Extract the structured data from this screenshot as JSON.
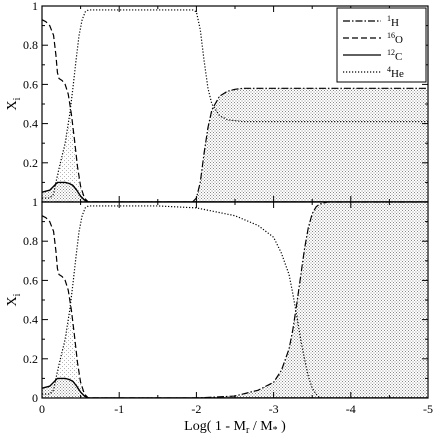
{
  "chart_data": {
    "type": "line",
    "xlabel": "Log( 1 - M_r / M_*)",
    "xlabel_main": "Log( 1 - M",
    "xlabel_sub_r": "r",
    "xlabel_mid": " / M",
    "xlabel_sub_star": "*",
    "xlabel_end": " )",
    "xlim": [
      0,
      -5
    ],
    "xticks": [
      0,
      -1,
      -2,
      -3,
      -4,
      -5
    ],
    "xtick_labels": [
      "0",
      "-1",
      "-2",
      "-3",
      "-4",
      "-5"
    ],
    "legend": {
      "placement": "top-right",
      "entries": [
        {
          "sup": "1",
          "base": "H",
          "style": "dash-dot"
        },
        {
          "sup": "16",
          "base": "O",
          "style": "dashed"
        },
        {
          "sup": "12",
          "base": "C",
          "style": "solid"
        },
        {
          "sup": "4",
          "base": "He",
          "style": "dotted"
        }
      ]
    },
    "panels": [
      {
        "ylabel": "X",
        "ylabel_sub": "i",
        "ylim": [
          0,
          1
        ],
        "yticks": [
          0.2,
          0.4,
          0.6,
          0.8,
          1
        ],
        "ytick_labels": [
          "0.2",
          "0.4",
          "0.6",
          "0.8",
          "1"
        ],
        "series": [
          {
            "name": "1H",
            "style": "dash-dot",
            "x": [
              0,
              -1.95,
              -2.0,
              -2.05,
              -2.1,
              -2.15,
              -2.2,
              -2.3,
              -2.4,
              -2.5,
              -2.6,
              -2.8,
              -3.2,
              -5
            ],
            "y": [
              0,
              0,
              0.02,
              0.1,
              0.25,
              0.38,
              0.47,
              0.54,
              0.565,
              0.575,
              0.58,
              0.58,
              0.58,
              0.58
            ]
          },
          {
            "name": "16O",
            "style": "dashed",
            "x": [
              0,
              -0.05,
              -0.1,
              -0.15,
              -0.18,
              -0.2,
              -0.22,
              -0.26,
              -0.3,
              -0.34,
              -0.38,
              -0.42,
              -0.46,
              -0.5,
              -0.55,
              -0.6,
              -0.7,
              -5
            ],
            "y": [
              0.93,
              0.92,
              0.9,
              0.85,
              0.75,
              0.66,
              0.63,
              0.62,
              0.6,
              0.55,
              0.45,
              0.32,
              0.18,
              0.08,
              0.02,
              0,
              0,
              0
            ]
          },
          {
            "name": "12C",
            "style": "solid",
            "x": [
              0,
              -0.05,
              -0.1,
              -0.15,
              -0.2,
              -0.25,
              -0.3,
              -0.35,
              -0.4,
              -0.45,
              -0.5,
              -0.55,
              -0.6,
              -5
            ],
            "y": [
              0.05,
              0.055,
              0.06,
              0.08,
              0.1,
              0.1,
              0.1,
              0.095,
              0.085,
              0.06,
              0.03,
              0.01,
              0,
              0
            ]
          },
          {
            "name": "4He",
            "style": "dotted",
            "x": [
              0,
              -0.1,
              -0.15,
              -0.18,
              -0.22,
              -0.3,
              -0.36,
              -0.4,
              -0.44,
              -0.48,
              -0.52,
              -0.56,
              -0.6,
              -0.7,
              -1.0,
              -1.5,
              -1.95,
              -2.0,
              -2.05,
              -2.1,
              -2.15,
              -2.2,
              -2.3,
              -2.4,
              -2.6,
              -3.0,
              -5
            ],
            "y": [
              0.02,
              0.02,
              0.04,
              0.1,
              0.17,
              0.3,
              0.45,
              0.58,
              0.72,
              0.85,
              0.93,
              0.97,
              0.98,
              0.98,
              0.98,
              0.98,
              0.98,
              0.97,
              0.88,
              0.72,
              0.58,
              0.5,
              0.44,
              0.42,
              0.41,
              0.41,
              0.41
            ]
          }
        ]
      },
      {
        "ylabel": "X",
        "ylabel_sub": "i",
        "ylim": [
          0,
          1
        ],
        "yticks": [
          0,
          0.2,
          0.4,
          0.6,
          0.8,
          1
        ],
        "ytick_labels": [
          "0",
          "0.2",
          "0.4",
          "0.6",
          "0.8",
          "1"
        ],
        "series": [
          {
            "name": "1H",
            "style": "dash-dot",
            "x": [
              0,
              -2.0,
              -2.5,
              -2.8,
              -3.0,
              -3.1,
              -3.2,
              -3.25,
              -3.3,
              -3.35,
              -3.4,
              -3.45,
              -3.5,
              -3.55,
              -3.6,
              -3.7,
              -3.8,
              -5
            ],
            "y": [
              0,
              0,
              0.01,
              0.04,
              0.08,
              0.14,
              0.25,
              0.35,
              0.48,
              0.62,
              0.76,
              0.87,
              0.94,
              0.975,
              0.99,
              1.0,
              1.0,
              1.0
            ]
          },
          {
            "name": "16O",
            "style": "dashed",
            "x": [
              0,
              -0.05,
              -0.1,
              -0.15,
              -0.18,
              -0.2,
              -0.22,
              -0.26,
              -0.3,
              -0.34,
              -0.38,
              -0.42,
              -0.46,
              -0.5,
              -0.55,
              -0.6,
              -0.7,
              -5
            ],
            "y": [
              0.93,
              0.92,
              0.9,
              0.85,
              0.75,
              0.66,
              0.63,
              0.62,
              0.6,
              0.55,
              0.45,
              0.32,
              0.18,
              0.08,
              0.02,
              0,
              0,
              0
            ]
          },
          {
            "name": "12C",
            "style": "solid",
            "x": [
              0,
              -0.05,
              -0.1,
              -0.15,
              -0.2,
              -0.25,
              -0.3,
              -0.35,
              -0.4,
              -0.45,
              -0.5,
              -0.55,
              -0.6,
              -5
            ],
            "y": [
              0.05,
              0.055,
              0.06,
              0.08,
              0.1,
              0.1,
              0.1,
              0.095,
              0.085,
              0.06,
              0.03,
              0.01,
              0,
              0
            ]
          },
          {
            "name": "4He",
            "style": "dotted",
            "x": [
              0,
              -0.1,
              -0.15,
              -0.18,
              -0.22,
              -0.3,
              -0.36,
              -0.4,
              -0.44,
              -0.48,
              -0.52,
              -0.56,
              -0.6,
              -0.7,
              -1.5,
              -2.0,
              -2.5,
              -2.8,
              -3.0,
              -3.1,
              -3.2,
              -3.25,
              -3.3,
              -3.35,
              -3.4,
              -3.45,
              -3.5,
              -3.55,
              -3.6,
              -3.8,
              -5
            ],
            "y": [
              0.02,
              0.02,
              0.04,
              0.1,
              0.17,
              0.3,
              0.45,
              0.58,
              0.72,
              0.85,
              0.93,
              0.97,
              0.98,
              0.98,
              0.98,
              0.97,
              0.93,
              0.88,
              0.82,
              0.74,
              0.63,
              0.53,
              0.42,
              0.3,
              0.2,
              0.11,
              0.05,
              0.02,
              0,
              0,
              0
            ]
          }
        ]
      }
    ]
  }
}
